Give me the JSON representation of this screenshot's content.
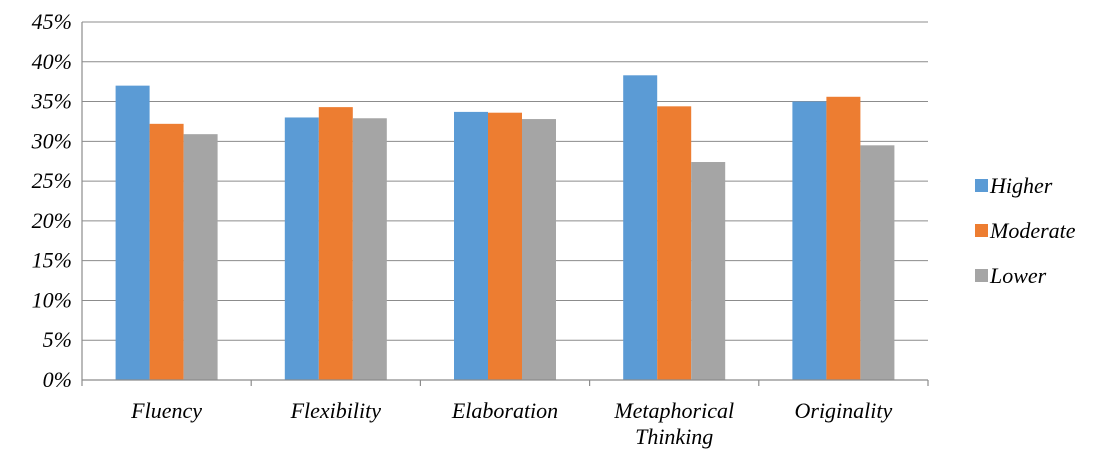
{
  "chart_data": {
    "type": "bar",
    "categories": [
      "Fluency",
      "Flexibility",
      "Elaboration",
      "Metaphorical Thinking",
      "Originality"
    ],
    "category_lines": [
      [
        "Fluency"
      ],
      [
        "Flexibility"
      ],
      [
        "Elaboration"
      ],
      [
        "Metaphorical",
        "Thinking"
      ],
      [
        "Originality"
      ]
    ],
    "series": [
      {
        "name": "Higher",
        "color": "#5b9bd5",
        "values": [
          37.0,
          33.0,
          33.7,
          38.3,
          35.0
        ]
      },
      {
        "name": "Moderate",
        "color": "#ed7d31",
        "values": [
          32.2,
          34.3,
          33.6,
          34.4,
          35.6
        ]
      },
      {
        "name": "Lower",
        "color": "#a5a5a5",
        "values": [
          30.9,
          32.9,
          32.8,
          27.4,
          29.5
        ]
      }
    ],
    "ylim": [
      0,
      45
    ],
    "ytick_step": 5,
    "ytick_labels": [
      "0%",
      "5%",
      "10%",
      "15%",
      "20%",
      "25%",
      "30%",
      "35%",
      "40%",
      "45%"
    ],
    "grid": true,
    "legend_position": "right",
    "title": "",
    "xlabel": "",
    "ylabel": ""
  }
}
